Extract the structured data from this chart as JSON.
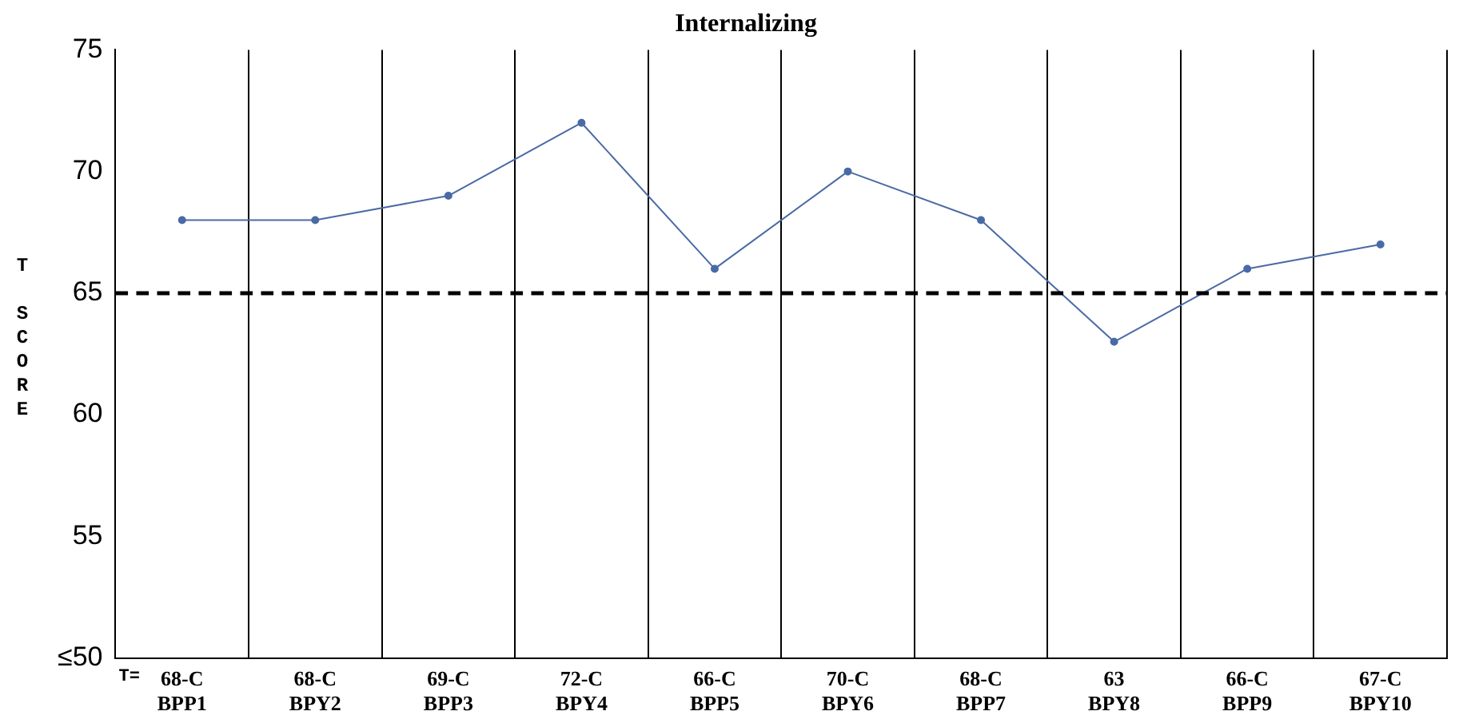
{
  "chart_data": {
    "type": "line",
    "title": "Internalizing",
    "ylabel": "T SCORE",
    "categories": [
      "68-C\nBPP1",
      "68-C\nBPY2",
      "69-C\nBPP3",
      "72-C\nBPY4",
      "66-C\nBPP5",
      "70-C\nBPY6",
      "68-C\nBPP7",
      "63\nBPY8",
      "66-C\nBPP9",
      "67-C\nBPY10"
    ],
    "series": [
      {
        "color": "#4a6aa5",
        "values": [
          68,
          68,
          69,
          72,
          66,
          70,
          68,
          63,
          66,
          67
        ]
      }
    ],
    "ylim": [
      50,
      75
    ],
    "yticks": [
      {
        "value": 50,
        "label": "≤50"
      },
      55,
      60,
      65,
      70,
      75
    ],
    "ref_lines": [
      {
        "axis": "y",
        "value": 65,
        "color": "#000000",
        "line_style": "dashed"
      }
    ],
    "annotations": [
      "T="
    ],
    "grid": "x",
    "legend": false,
    "marker": "circle",
    "line_style": "solid"
  }
}
